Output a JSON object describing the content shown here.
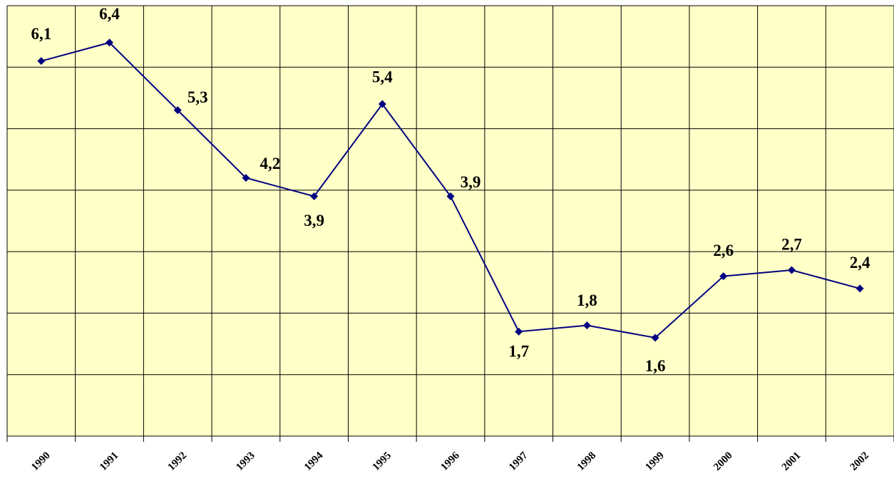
{
  "chart_data": {
    "type": "line",
    "categories": [
      "1990",
      "1991",
      "1992",
      "1993",
      "1994",
      "1995",
      "1996",
      "1997",
      "1998",
      "1999",
      "2000",
      "2001",
      "2002"
    ],
    "series": [
      {
        "color": "#000080",
        "values": [
          6.1,
          6.4,
          5.3,
          4.2,
          3.9,
          5.4,
          3.9,
          1.7,
          1.8,
          1.6,
          2.6,
          2.7,
          2.4
        ],
        "value_labels": [
          "6,1",
          "6,4",
          "5,3",
          "4,2",
          "3,9",
          "5,4",
          "3,9",
          "1,7",
          "1,8",
          "1,6",
          "2,6",
          "2,7",
          "2,4"
        ]
      }
    ],
    "ylim": [
      0,
      7
    ],
    "yticks": [
      0,
      1,
      2,
      3,
      4,
      5,
      6,
      7
    ],
    "grid": true,
    "background": "#ffffc8"
  }
}
